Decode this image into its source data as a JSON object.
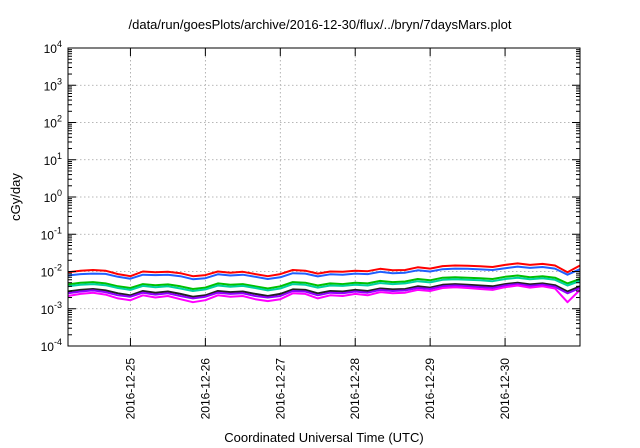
{
  "chart_data": {
    "type": "line",
    "title": "/data/run/goesPlots/archive/2016-12-30/flux/../bryn/7daysMars.plot",
    "xlabel": "Coordinated Universal Time (UTC)",
    "ylabel": "cGy/day",
    "y_scale": "log",
    "ylim": [
      0.0001,
      10000
    ],
    "y_tick_labels": [
      {
        "base": "10",
        "exp": "-4"
      },
      {
        "base": "10",
        "exp": "-3"
      },
      {
        "base": "10",
        "exp": "-2"
      },
      {
        "base": "10",
        "exp": "-1"
      },
      {
        "base": "10",
        "exp": "0"
      },
      {
        "base": "10",
        "exp": "1"
      },
      {
        "base": "10",
        "exp": "2"
      },
      {
        "base": "10",
        "exp": "3"
      },
      {
        "base": "10",
        "exp": "4"
      }
    ],
    "xlim": [
      "2016-12-24T04:00",
      "2016-12-31T00:00"
    ],
    "x_ticks": [
      "2016-12-25",
      "2016-12-26",
      "2016-12-27",
      "2016-12-28",
      "2016-12-29",
      "2016-12-30"
    ],
    "grid": true,
    "x": [
      "2016-12-24T04:00",
      "2016-12-24T08:00",
      "2016-12-24T12:00",
      "2016-12-24T16:00",
      "2016-12-24T20:00",
      "2016-12-25T00:00",
      "2016-12-25T04:00",
      "2016-12-25T08:00",
      "2016-12-25T12:00",
      "2016-12-25T16:00",
      "2016-12-25T20:00",
      "2016-12-26T00:00",
      "2016-12-26T04:00",
      "2016-12-26T08:00",
      "2016-12-26T12:00",
      "2016-12-26T16:00",
      "2016-12-26T20:00",
      "2016-12-27T00:00",
      "2016-12-27T04:00",
      "2016-12-27T08:00",
      "2016-12-27T12:00",
      "2016-12-27T16:00",
      "2016-12-27T20:00",
      "2016-12-28T00:00",
      "2016-12-28T04:00",
      "2016-12-28T08:00",
      "2016-12-28T12:00",
      "2016-12-28T16:00",
      "2016-12-28T20:00",
      "2016-12-29T00:00",
      "2016-12-29T04:00",
      "2016-12-29T08:00",
      "2016-12-29T12:00",
      "2016-12-29T16:00",
      "2016-12-29T20:00",
      "2016-12-30T00:00",
      "2016-12-30T04:00",
      "2016-12-30T08:00",
      "2016-12-30T12:00",
      "2016-12-30T16:00",
      "2016-12-30T20:00",
      "2016-12-31T00:00"
    ],
    "series": [
      {
        "color": "#ff0000",
        "values": [
          0.0095,
          0.0105,
          0.011,
          0.0105,
          0.0085,
          0.0075,
          0.01,
          0.0095,
          0.0098,
          0.009,
          0.0075,
          0.008,
          0.01,
          0.0092,
          0.0098,
          0.0085,
          0.0075,
          0.0085,
          0.011,
          0.0105,
          0.0088,
          0.01,
          0.0098,
          0.0105,
          0.0102,
          0.0118,
          0.0108,
          0.011,
          0.013,
          0.012,
          0.014,
          0.0145,
          0.0142,
          0.0138,
          0.0132,
          0.015,
          0.0165,
          0.015,
          0.016,
          0.0145,
          0.0095,
          0.0145
        ]
      },
      {
        "color": "#1f5fff",
        "values": [
          0.0078,
          0.0085,
          0.0088,
          0.0086,
          0.0072,
          0.0064,
          0.0082,
          0.008,
          0.0082,
          0.0075,
          0.0062,
          0.0066,
          0.0084,
          0.0078,
          0.0082,
          0.0072,
          0.0063,
          0.007,
          0.009,
          0.0088,
          0.0074,
          0.0084,
          0.0082,
          0.0088,
          0.0085,
          0.0098,
          0.009,
          0.0093,
          0.0108,
          0.01,
          0.0115,
          0.012,
          0.0118,
          0.0114,
          0.011,
          0.0122,
          0.0135,
          0.0125,
          0.0132,
          0.012,
          0.0082,
          0.0115
        ]
      },
      {
        "color": "#00c000",
        "values": [
          0.0045,
          0.005,
          0.0052,
          0.0048,
          0.004,
          0.0036,
          0.0046,
          0.0043,
          0.0045,
          0.004,
          0.0034,
          0.0037,
          0.0048,
          0.0044,
          0.0046,
          0.004,
          0.0035,
          0.004,
          0.0052,
          0.005,
          0.0042,
          0.0048,
          0.0046,
          0.005,
          0.0048,
          0.0056,
          0.0052,
          0.0054,
          0.0063,
          0.0058,
          0.0068,
          0.007,
          0.0068,
          0.0066,
          0.0063,
          0.0072,
          0.0078,
          0.007,
          0.0075,
          0.0068,
          0.0048,
          0.0063
        ]
      },
      {
        "color": "#00d0a0",
        "values": [
          0.004,
          0.0044,
          0.0046,
          0.0043,
          0.0036,
          0.0032,
          0.0041,
          0.0038,
          0.004,
          0.0035,
          0.003,
          0.0033,
          0.0042,
          0.0039,
          0.0041,
          0.0036,
          0.0031,
          0.0035,
          0.0046,
          0.0044,
          0.0037,
          0.0042,
          0.0041,
          0.0044,
          0.0042,
          0.0049,
          0.0046,
          0.0048,
          0.0055,
          0.0051,
          0.006,
          0.0062,
          0.006,
          0.0058,
          0.0055,
          0.0063,
          0.0068,
          0.0062,
          0.0066,
          0.006,
          0.0042,
          0.0056
        ]
      },
      {
        "color": "#202020",
        "values": [
          0.0029,
          0.0032,
          0.0034,
          0.0031,
          0.0026,
          0.0023,
          0.003,
          0.0027,
          0.0029,
          0.0025,
          0.0021,
          0.0023,
          0.003,
          0.0028,
          0.0029,
          0.0025,
          0.0022,
          0.0025,
          0.0033,
          0.0032,
          0.0026,
          0.003,
          0.0029,
          0.0032,
          0.003,
          0.0035,
          0.0033,
          0.0034,
          0.004,
          0.0037,
          0.0044,
          0.0046,
          0.0044,
          0.0042,
          0.004,
          0.0046,
          0.005,
          0.0045,
          0.0048,
          0.0043,
          0.0029,
          0.004
        ]
      },
      {
        "color": "#9000ff",
        "values": [
          0.0026,
          0.0029,
          0.0031,
          0.0028,
          0.0023,
          0.0021,
          0.0027,
          0.0024,
          0.0026,
          0.0022,
          0.0019,
          0.0021,
          0.0027,
          0.0025,
          0.0026,
          0.0022,
          0.002,
          0.0022,
          0.003,
          0.0029,
          0.0023,
          0.0027,
          0.0026,
          0.0029,
          0.0027,
          0.0032,
          0.003,
          0.0031,
          0.0036,
          0.0034,
          0.004,
          0.0042,
          0.004,
          0.0038,
          0.0036,
          0.0042,
          0.0046,
          0.0041,
          0.0044,
          0.0039,
          0.0026,
          0.0036
        ]
      },
      {
        "color": "#ff00ff",
        "values": [
          0.0022,
          0.0025,
          0.0027,
          0.0024,
          0.0019,
          0.0017,
          0.0023,
          0.002,
          0.0022,
          0.0018,
          0.0015,
          0.0017,
          0.0023,
          0.0021,
          0.0022,
          0.0018,
          0.0016,
          0.0018,
          0.0026,
          0.0025,
          0.0019,
          0.0023,
          0.0022,
          0.0025,
          0.0023,
          0.0028,
          0.0026,
          0.0027,
          0.0032,
          0.003,
          0.0036,
          0.0038,
          0.0036,
          0.0034,
          0.0032,
          0.0038,
          0.0042,
          0.0037,
          0.004,
          0.0035,
          0.0015,
          0.0032
        ]
      }
    ]
  }
}
